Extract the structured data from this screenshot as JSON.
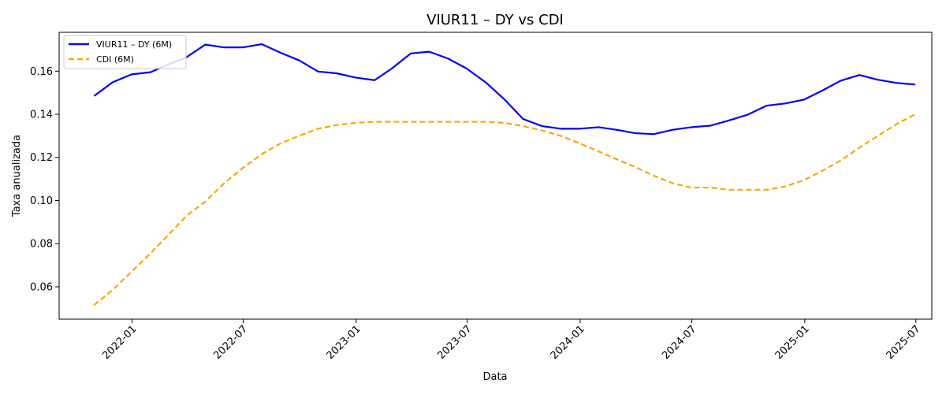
{
  "chart_data": {
    "type": "line",
    "title": "VIUR11 – DY vs CDI",
    "xlabel": "Data",
    "ylabel": "Taxa anualizada",
    "xlim": [
      "2021-09-04",
      "2025-07-27"
    ],
    "ylim": [
      0.045,
      0.178
    ],
    "x_ticks": [
      "2022-01",
      "2022-07",
      "2023-01",
      "2023-07",
      "2024-01",
      "2024-07",
      "2025-01",
      "2025-07"
    ],
    "y_ticks": [
      "0.06",
      "0.08",
      "0.10",
      "0.12",
      "0.14",
      "0.16"
    ],
    "grid": false,
    "legend_position": "top-left",
    "x": [
      "2021-10-31",
      "2021-11-30",
      "2021-12-31",
      "2022-01-31",
      "2022-02-28",
      "2022-03-31",
      "2022-04-30",
      "2022-05-31",
      "2022-06-30",
      "2022-07-31",
      "2022-08-31",
      "2022-09-30",
      "2022-10-31",
      "2022-11-30",
      "2022-12-31",
      "2023-01-31",
      "2023-02-28",
      "2023-03-31",
      "2023-04-30",
      "2023-05-31",
      "2023-06-30",
      "2023-07-31",
      "2023-08-31",
      "2023-09-30",
      "2023-10-31",
      "2023-11-30",
      "2023-12-31",
      "2024-01-31",
      "2024-02-29",
      "2024-03-31",
      "2024-04-30",
      "2024-05-31",
      "2024-06-30",
      "2024-07-31",
      "2024-08-31",
      "2024-09-30",
      "2024-10-31",
      "2024-11-30",
      "2024-12-31",
      "2025-01-31",
      "2025-02-28",
      "2025-03-31",
      "2025-04-30",
      "2025-05-31",
      "2025-06-30"
    ],
    "series": [
      {
        "name": "VIUR11 – DY (6M)",
        "color": "#0000ff",
        "style": "solid",
        "values": [
          0.1485,
          0.1548,
          0.1585,
          0.1595,
          0.163,
          0.1665,
          0.1723,
          0.171,
          0.171,
          0.1725,
          0.1685,
          0.165,
          0.1598,
          0.159,
          0.157,
          0.1558,
          0.1612,
          0.1682,
          0.169,
          0.1658,
          0.1612,
          0.1548,
          0.1468,
          0.1378,
          0.1345,
          0.1333,
          0.1333,
          0.134,
          0.1328,
          0.1312,
          0.1308,
          0.1328,
          0.134,
          0.1347,
          0.1372,
          0.1398,
          0.144,
          0.145,
          0.1468,
          0.1512,
          0.1555,
          0.1582,
          0.156,
          0.1545,
          0.1538
        ]
      },
      {
        "name": "CDI (6M)",
        "color": "#ffa500",
        "style": "dashed",
        "values": [
          0.0515,
          0.0585,
          0.067,
          0.0755,
          0.0838,
          0.093,
          0.0995,
          0.108,
          0.115,
          0.1215,
          0.1265,
          0.13,
          0.1333,
          0.135,
          0.136,
          0.1365,
          0.1365,
          0.1365,
          0.1365,
          0.1365,
          0.1365,
          0.1365,
          0.136,
          0.1345,
          0.1325,
          0.13,
          0.1265,
          0.1228,
          0.1192,
          0.1155,
          0.1115,
          0.108,
          0.106,
          0.106,
          0.105,
          0.105,
          0.105,
          0.1065,
          0.1095,
          0.114,
          0.1185,
          0.1245,
          0.13,
          0.1355,
          0.14
        ]
      }
    ]
  }
}
